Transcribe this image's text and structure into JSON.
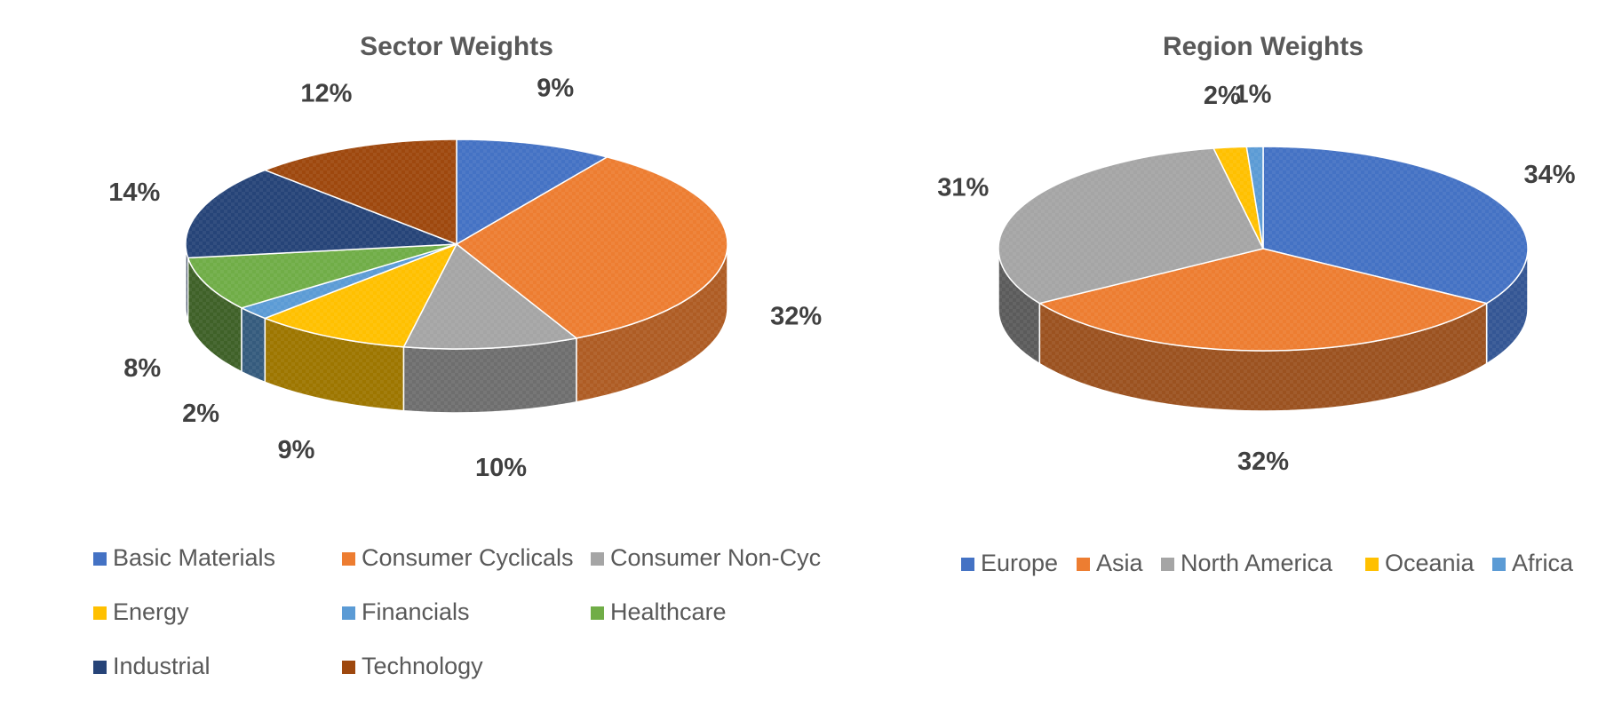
{
  "chart_data": [
    {
      "type": "pie",
      "title": "Sector Weights",
      "categories": [
        "Basic Materials",
        "Consumer Cyclicals",
        "Consumer Non-Cyc",
        "Energy",
        "Financials",
        "Healthcare",
        "Industrial",
        "Technology"
      ],
      "values": [
        9,
        32,
        10,
        9,
        2,
        8,
        14,
        12
      ],
      "data_labels": [
        "9%",
        "32%",
        "10%",
        "9%",
        "2%",
        "8%",
        "14%",
        "12%"
      ],
      "colors": [
        "#4472C4",
        "#ED7D31",
        "#A5A5A5",
        "#FFC000",
        "#5B9BD5",
        "#70AD47",
        "#264478",
        "#9E480E"
      ],
      "legend_position": "bottom",
      "style": "3d"
    },
    {
      "type": "pie",
      "title": "Region Weights",
      "categories": [
        "Europe",
        "Asia",
        "North America",
        "Oceania",
        "Africa"
      ],
      "values": [
        34,
        32,
        31,
        2,
        1
      ],
      "data_labels": [
        "34%",
        "32%",
        "31%",
        "2%",
        "1%"
      ],
      "colors": [
        "#4472C4",
        "#ED7D31",
        "#A5A5A5",
        "#FFC000",
        "#5B9BD5"
      ],
      "legend_position": "bottom",
      "style": "3d"
    }
  ]
}
